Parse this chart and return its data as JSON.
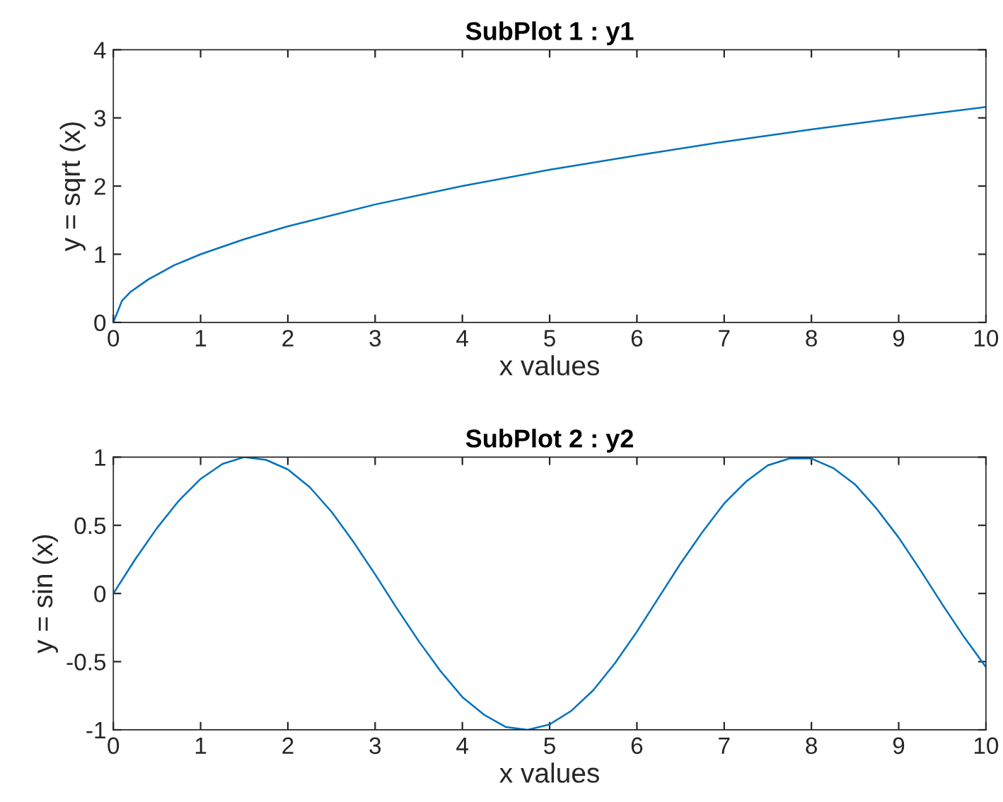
{
  "chart_data": [
    {
      "type": "line",
      "title": "SubPlot 1 : y1",
      "xlabel": "x values",
      "ylabel": "y = sqrt (x)",
      "xlim": [
        0,
        10
      ],
      "ylim": [
        0,
        4
      ],
      "xticks": [
        0,
        1,
        2,
        3,
        4,
        5,
        6,
        7,
        8,
        9,
        10
      ],
      "yticks": [
        0,
        1,
        2,
        3,
        4
      ],
      "grid": false,
      "series": [
        {
          "color": "#0072bd",
          "x": [
            0,
            0.1,
            0.2,
            0.4,
            0.7,
            1,
            1.5,
            2,
            3,
            4,
            5,
            6,
            7,
            8,
            9,
            10
          ],
          "values": [
            0,
            0.32,
            0.45,
            0.63,
            0.84,
            1,
            1.22,
            1.41,
            1.73,
            2,
            2.24,
            2.45,
            2.65,
            2.83,
            3,
            3.16
          ]
        }
      ]
    },
    {
      "type": "line",
      "title": "SubPlot 2 : y2",
      "xlabel": "x values",
      "ylabel": "y = sin (x)",
      "xlim": [
        0,
        10
      ],
      "ylim": [
        -1,
        1
      ],
      "xticks": [
        0,
        1,
        2,
        3,
        4,
        5,
        6,
        7,
        8,
        9,
        10
      ],
      "yticks": [
        -1,
        -0.5,
        0,
        0.5,
        1
      ],
      "grid": false,
      "series": [
        {
          "color": "#0072bd",
          "x": [
            0,
            0.25,
            0.5,
            0.75,
            1,
            1.25,
            1.5,
            1.75,
            2,
            2.25,
            2.5,
            2.75,
            3,
            3.25,
            3.5,
            3.75,
            4,
            4.25,
            4.5,
            4.75,
            5,
            5.25,
            5.5,
            5.75,
            6,
            6.25,
            6.5,
            6.75,
            7,
            7.25,
            7.5,
            7.75,
            8,
            8.25,
            8.5,
            8.75,
            9,
            9.25,
            9.5,
            9.75,
            10
          ],
          "values": [
            0,
            0.25,
            0.48,
            0.68,
            0.84,
            0.95,
            1.0,
            0.98,
            0.91,
            0.78,
            0.6,
            0.38,
            0.14,
            -0.11,
            -0.35,
            -0.57,
            -0.76,
            -0.89,
            -0.98,
            -1.0,
            -0.96,
            -0.86,
            -0.71,
            -0.51,
            -0.28,
            -0.03,
            0.22,
            0.45,
            0.66,
            0.82,
            0.94,
            0.99,
            0.99,
            0.92,
            0.8,
            0.62,
            0.41,
            0.17,
            -0.08,
            -0.32,
            -0.54
          ]
        }
      ]
    }
  ]
}
